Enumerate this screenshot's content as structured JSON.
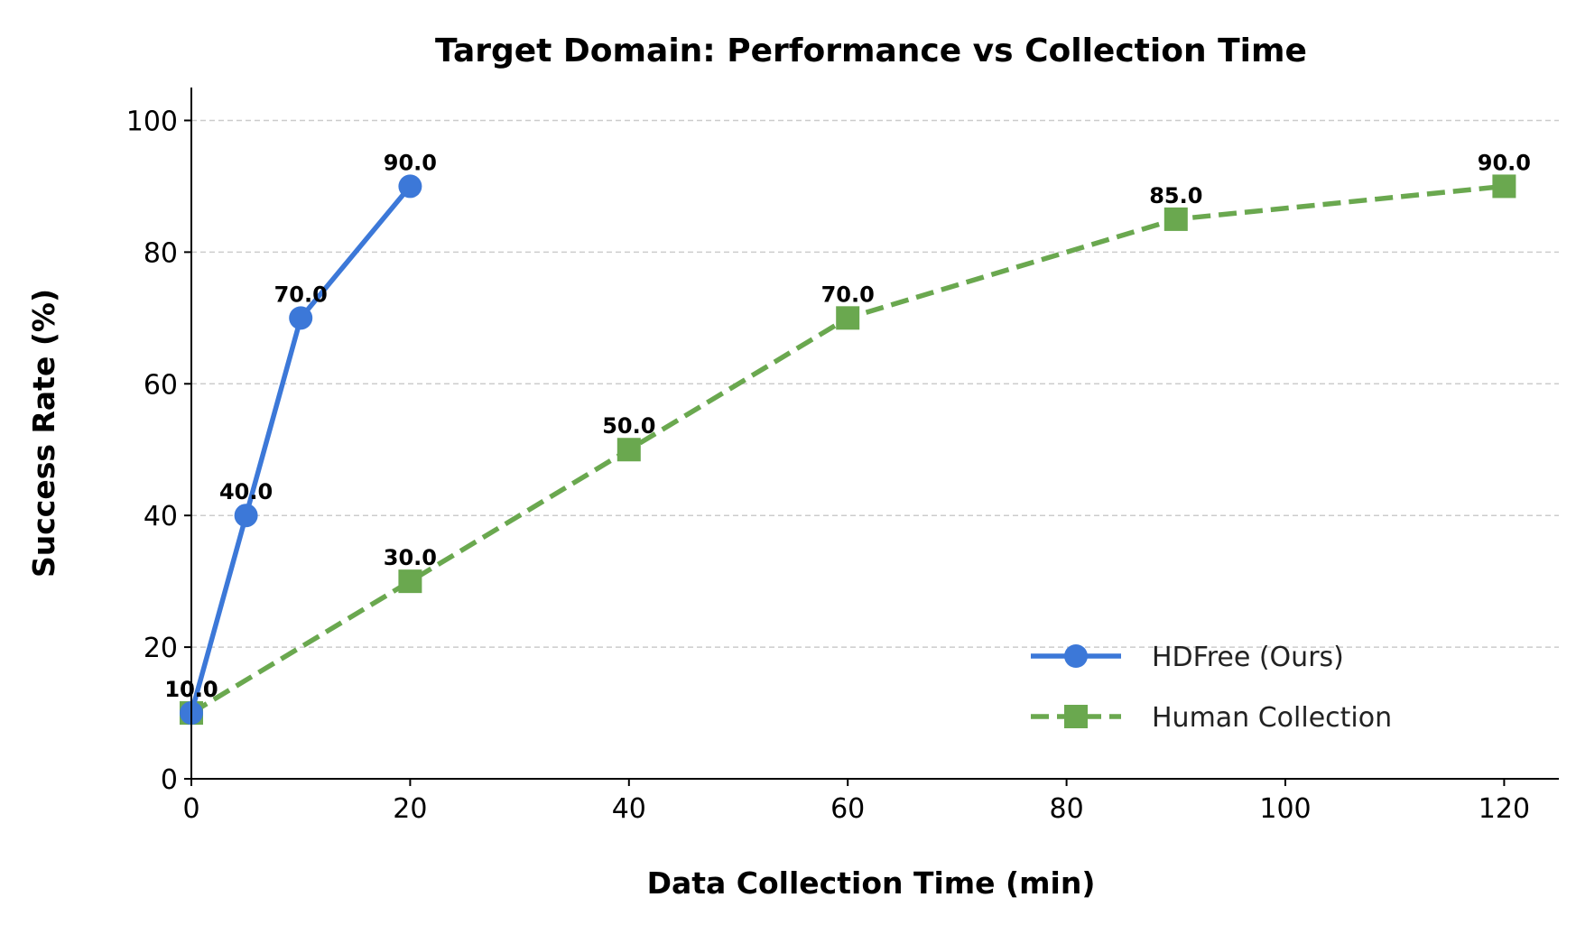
{
  "chart_data": {
    "type": "line",
    "title": "Target Domain: Performance vs Collection Time",
    "xlabel": "Data Collection Time (min)",
    "ylabel": "Success Rate (%)",
    "xlim": [
      0,
      125
    ],
    "ylim": [
      0,
      105
    ],
    "xticks": [
      0,
      20,
      40,
      60,
      80,
      100,
      120
    ],
    "yticks": [
      0,
      20,
      40,
      60,
      80,
      100
    ],
    "grid": "y-dashed",
    "legend_position": "lower-right",
    "series": [
      {
        "name": "HDFree (Ours)",
        "color": "#3c78d8",
        "marker": "circle",
        "linestyle": "solid",
        "x": [
          0,
          5,
          10,
          20
        ],
        "y": [
          10.0,
          40.0,
          70.0,
          90.0
        ],
        "labels": [
          "10.0",
          "40.0",
          "70.0",
          "90.0"
        ]
      },
      {
        "name": "Human Collection",
        "color": "#6aa84f",
        "marker": "square",
        "linestyle": "dashed",
        "x": [
          0,
          20,
          40,
          60,
          90,
          120
        ],
        "y": [
          10.0,
          30.0,
          50.0,
          70.0,
          85.0,
          90.0
        ],
        "labels": [
          "10.0",
          "30.0",
          "50.0",
          "70.0",
          "85.0",
          "90.0"
        ]
      }
    ]
  }
}
